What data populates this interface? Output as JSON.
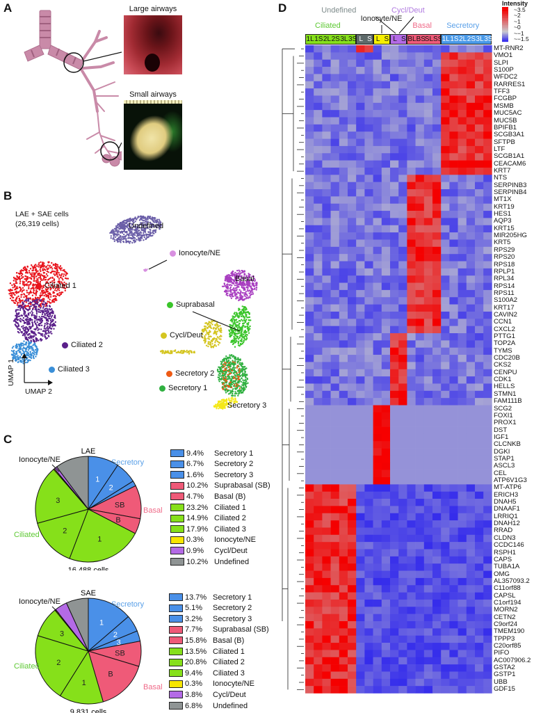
{
  "panels": {
    "A": {
      "letter": "A",
      "large_airways_label": "Large airways",
      "small_airways_label": "Small airways"
    },
    "B": {
      "letter": "B",
      "title_line1": "LAE + SAE cells",
      "title_line2": "(26,319 cells)",
      "axis_y": "UMAP 1",
      "axis_x": "UMAP 2",
      "clusters": [
        {
          "name": "Undefined",
          "color": "#6b5fa8"
        },
        {
          "name": "Ionocyte/NE",
          "color": "#d890e0"
        },
        {
          "name": "Ciliated 1",
          "color": "#e8131b"
        },
        {
          "name": "Ciliated 2",
          "color": "#5a1f8a"
        },
        {
          "name": "Ciliated 3",
          "color": "#3a8fd8"
        },
        {
          "name": "Basal",
          "color": "#a83ec0"
        },
        {
          "name": "Suprabasal",
          "color": "#3ac52a"
        },
        {
          "name": "Cycl/Deut",
          "color": "#d4c520"
        },
        {
          "name": "Secretory 2",
          "color": "#ee5a14"
        },
        {
          "name": "Secretory 1",
          "color": "#30b040"
        },
        {
          "name": "Secretory 3",
          "color": "#f4e818"
        }
      ]
    },
    "C": {
      "letter": "C",
      "group_labels": {
        "secretory": "Secretory",
        "basal": "Basal",
        "ciliated": "Ciliated",
        "ionocyte": "Ionocyte/NE"
      },
      "colors": {
        "secretory": "#4a90e8",
        "basal": "#ef5a78",
        "ciliated": "#86e01a",
        "ionocyte": "#f7e600",
        "cycl": "#b46ae6",
        "undefined": "#8f9494"
      },
      "label_colors": {
        "secretory": "#5aa0e8",
        "basal": "#ef6a88",
        "ciliated": "#5cc832"
      }
    }
  },
  "chart_data": [
    {
      "type": "pie",
      "title": "LAE",
      "caption": "16,488 cells",
      "slices": [
        {
          "label": "Secretory 1",
          "short": "1",
          "group": "secretory",
          "value": 9.4
        },
        {
          "label": "Secretory 2",
          "short": "2",
          "group": "secretory",
          "value": 6.7
        },
        {
          "label": "Secretory 3",
          "short": "3",
          "group": "secretory",
          "value": 1.6
        },
        {
          "label": "Suprabasal (SB)",
          "short": "SB",
          "group": "basal",
          "value": 10.2
        },
        {
          "label": "Basal (B)",
          "short": "B",
          "group": "basal",
          "value": 4.7
        },
        {
          "label": "Ciliated 1",
          "short": "1",
          "group": "ciliated",
          "value": 23.2
        },
        {
          "label": "Ciliated 2",
          "short": "2",
          "group": "ciliated",
          "value": 14.9
        },
        {
          "label": "Ciliated 3",
          "short": "3",
          "group": "ciliated",
          "value": 17.9
        },
        {
          "label": "Ionocyte/NE",
          "short": "",
          "group": "ionocyte",
          "value": 0.3
        },
        {
          "label": "Cycl/Deut",
          "short": "",
          "group": "cycl",
          "value": 0.9
        },
        {
          "label": "Undefined",
          "short": "",
          "group": "undefined",
          "value": 10.2
        }
      ],
      "legend": [
        "9.4%",
        "6.7%",
        "1.6%",
        "10.2%",
        "4.7%",
        "23.2%",
        "14.9%",
        "17.9%",
        "0.3%",
        "0.9%",
        "10.2%"
      ]
    },
    {
      "type": "pie",
      "title": "SAE",
      "caption": "9,831 cells",
      "slices": [
        {
          "label": "Secretory 1",
          "short": "1",
          "group": "secretory",
          "value": 13.7
        },
        {
          "label": "Secretory 2",
          "short": "2",
          "group": "secretory",
          "value": 5.1
        },
        {
          "label": "Secretory 3",
          "short": "3",
          "group": "secretory",
          "value": 3.2
        },
        {
          "label": "Suprabasal (SB)",
          "short": "SB",
          "group": "basal",
          "value": 7.7
        },
        {
          "label": "Basal (B)",
          "short": "B",
          "group": "basal",
          "value": 15.8
        },
        {
          "label": "Ciliated 1",
          "short": "1",
          "group": "ciliated",
          "value": 13.5
        },
        {
          "label": "Ciliated 2",
          "short": "2",
          "group": "ciliated",
          "value": 20.8
        },
        {
          "label": "Ciliated 3",
          "short": "3",
          "group": "ciliated",
          "value": 9.4
        },
        {
          "label": "Ionocyte/NE",
          "short": "",
          "group": "ionocyte",
          "value": 0.3
        },
        {
          "label": "Cycl/Deut",
          "short": "",
          "group": "cycl",
          "value": 3.8
        },
        {
          "label": "Undefined",
          "short": "",
          "group": "undefined",
          "value": 6.8
        }
      ],
      "legend": [
        "13.7%",
        "5.1%",
        "3.2%",
        "7.7%",
        "15.8%",
        "13.5%",
        "20.8%",
        "9.4%",
        "0.3%",
        "3.8%",
        "6.8%"
      ]
    },
    {
      "type": "heatmap",
      "letter": "D",
      "legend_title": "Intensity",
      "scale_ticks": [
        "3.5",
        "2",
        "1",
        "0",
        "−1",
        "−1.5"
      ],
      "scale_range": [
        -1.5,
        3.5
      ],
      "column_groups": [
        {
          "name": "Ciliated",
          "color": "#86e01a",
          "text": "#5cc832",
          "cols": [
            "1L",
            "1S",
            "2L",
            "2S",
            "3L",
            "3S"
          ]
        },
        {
          "name": "Undefined",
          "color": "#5e6a6a",
          "text": "#7d8a8a",
          "cols": [
            "L",
            "S"
          ]
        },
        {
          "name": "Ionocyte/NE",
          "color": "#f7f000",
          "text": "#222222",
          "cols": [
            "L",
            "S"
          ]
        },
        {
          "name": "Cycl/Deut",
          "color": "#b46ae6",
          "text": "#b07ae0",
          "cols": [
            "L",
            "S"
          ]
        },
        {
          "name": "Basal",
          "color": "#ef5a78",
          "text": "#ef6a88",
          "cols": [
            "BL",
            "BS",
            "SL",
            "SS"
          ]
        },
        {
          "name": "Secretory",
          "color": "#4a9ae8",
          "text": "#5aa0e8",
          "cols": [
            "1L",
            "1S",
            "2L",
            "2S",
            "3L",
            "3S"
          ]
        }
      ],
      "genes": [
        "MT-RNR2",
        "VMO1",
        "SLPI",
        "S100P",
        "WFDC2",
        "RARRES1",
        "TFF3",
        "FCGBP",
        "MSMB",
        "MUC5AC",
        "MUC5B",
        "BPIFB1",
        "SCGB3A1",
        "SFTPB",
        "LTF",
        "SCGB1A1",
        "CEACAM6",
        "KRT7",
        "NTS",
        "SERPINB3",
        "SERPINB4",
        "MT1X",
        "KRT19",
        "HES1",
        "AQP3",
        "KRT15",
        "MIR205HG",
        "KRT5",
        "RPS29",
        "RPS20",
        "RPS18",
        "RPLP1",
        "RPL34",
        "RPS14",
        "RPS11",
        "S100A2",
        "KRT17",
        "CAVIN2",
        "CCN1",
        "CXCL2",
        "PTTG1",
        "TOP2A",
        "TYMS",
        "CDC20B",
        "CKS2",
        "CENPU",
        "CDK1",
        "HELLS",
        "STMN1",
        "FAM111B",
        "SCG2",
        "FOXI1",
        "PROX1",
        "DST",
        "IGF1",
        "CLCNKB",
        "DGKI",
        "STAP1",
        "ASCL3",
        "CEL",
        "ATP6V1G3",
        "MT-ATP6",
        "ERICH3",
        "DNAH5",
        "DNAAF1",
        "LRRIQ1",
        "DNAH12",
        "RRAD",
        "CLDN3",
        "CCDC146",
        "RSPH1",
        "CAPS",
        "TUBA1A",
        "OMG",
        "AL357093.2",
        "C11orf88",
        "CAPSL",
        "C1orf194",
        "MORN2",
        "CETN2",
        "C9orf24",
        "TMEM190",
        "TPPP3",
        "C20orf85",
        "PIFO",
        "AC007906.2",
        "GSTA2",
        "GSTP1",
        "UBB",
        "GDF15"
      ],
      "gene_blocks": [
        {
          "from": "MT-RNR2",
          "to": "MT-RNR2",
          "high": [
            "Undefined"
          ]
        },
        {
          "from": "VMO1",
          "to": "KRT7",
          "high": [
            "Secretory"
          ]
        },
        {
          "from": "NTS",
          "to": "CXCL2",
          "high": [
            "Basal"
          ]
        },
        {
          "from": "PTTG1",
          "to": "FAM111B",
          "high": [
            "Cycl/Deut"
          ]
        },
        {
          "from": "SCG2",
          "to": "ATP6V1G3",
          "high": [
            "Ionocyte/NE"
          ]
        },
        {
          "from": "MT-ATP6",
          "to": "GDF15",
          "high": [
            "Ciliated"
          ]
        }
      ]
    }
  ]
}
